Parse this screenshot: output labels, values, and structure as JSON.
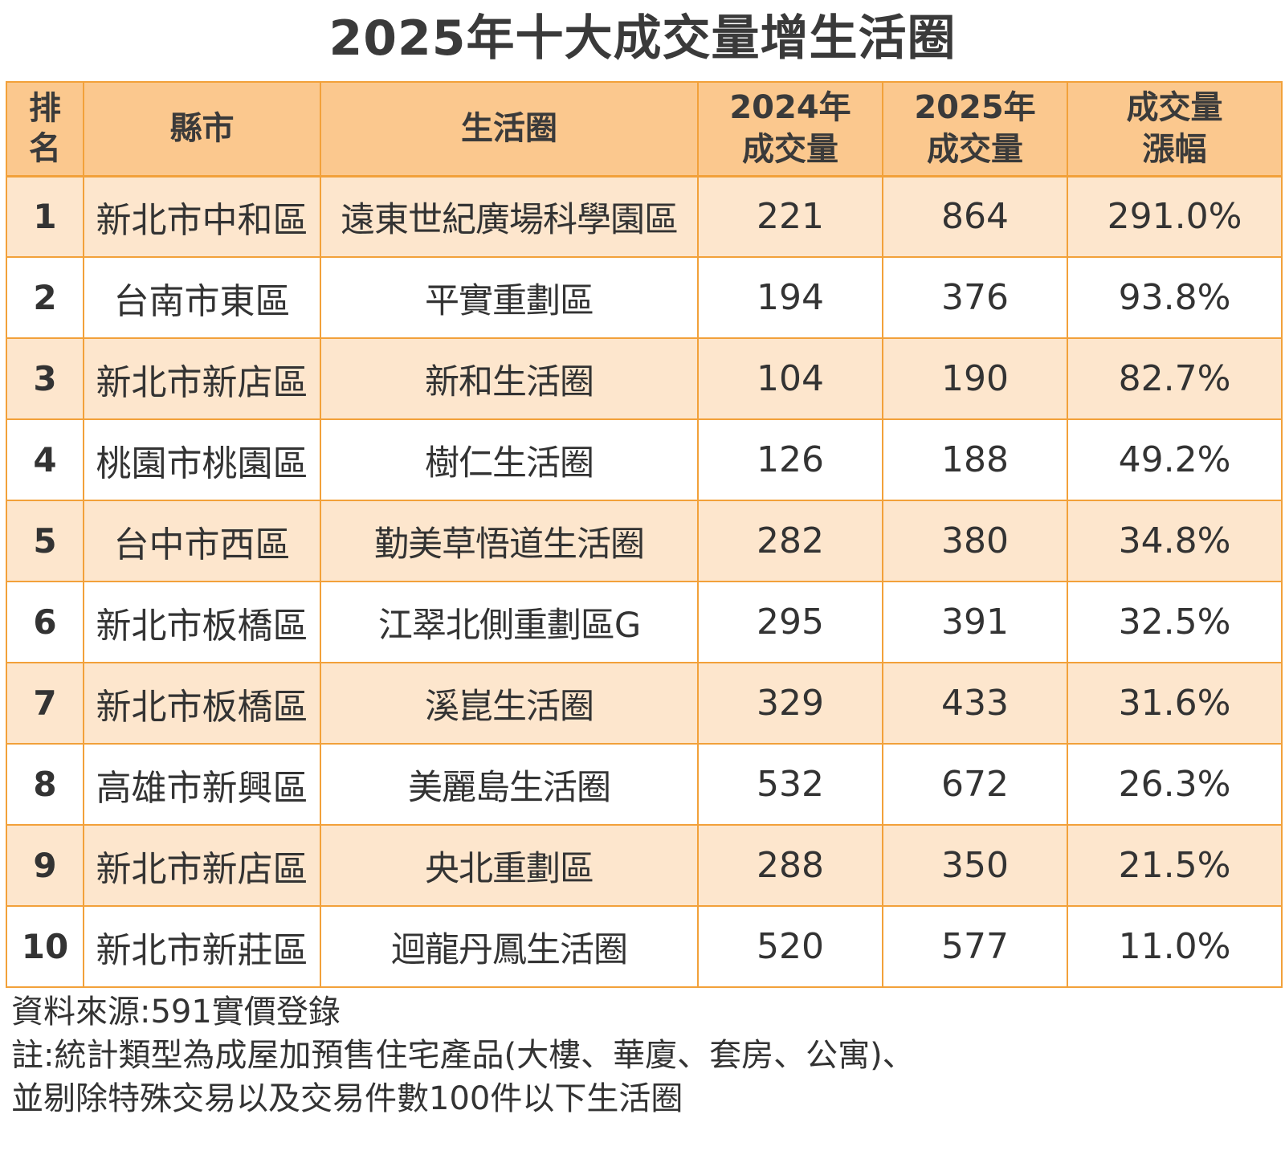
{
  "chart_data": {
    "type": "table",
    "title": "2025年十大成交量增生活圈",
    "columns": [
      "排名",
      "縣市",
      "生活圈",
      "2024年成交量",
      "2025年成交量",
      "成交量漲幅"
    ],
    "header_lines": [
      [
        "排",
        "名"
      ],
      [
        "縣市"
      ],
      [
        "生活圈"
      ],
      [
        "2024年",
        "成交量"
      ],
      [
        "2025年",
        "成交量"
      ],
      [
        "成交量",
        "漲幅"
      ]
    ],
    "rows": [
      {
        "rank": "1",
        "city": "新北市中和區",
        "circle": "遠東世紀廣場科學園區",
        "v2024": "221",
        "v2025": "864",
        "growth": "291.0%"
      },
      {
        "rank": "2",
        "city": "台南市東區",
        "circle": "平實重劃區",
        "v2024": "194",
        "v2025": "376",
        "growth": "93.8%"
      },
      {
        "rank": "3",
        "city": "新北市新店區",
        "circle": "新和生活圈",
        "v2024": "104",
        "v2025": "190",
        "growth": "82.7%"
      },
      {
        "rank": "4",
        "city": "桃園市桃園區",
        "circle": "樹仁生活圈",
        "v2024": "126",
        "v2025": "188",
        "growth": "49.2%"
      },
      {
        "rank": "5",
        "city": "台中市西區",
        "circle": "勤美草悟道生活圈",
        "v2024": "282",
        "v2025": "380",
        "growth": "34.8%"
      },
      {
        "rank": "6",
        "city": "新北市板橋區",
        "circle": "江翠北側重劃區G",
        "v2024": "295",
        "v2025": "391",
        "growth": "32.5%"
      },
      {
        "rank": "7",
        "city": "新北市板橋區",
        "circle": "溪崑生活圈",
        "v2024": "329",
        "v2025": "433",
        "growth": "31.6%"
      },
      {
        "rank": "8",
        "city": "高雄市新興區",
        "circle": "美麗島生活圈",
        "v2024": "532",
        "v2025": "672",
        "growth": "26.3%"
      },
      {
        "rank": "9",
        "city": "新北市新店區",
        "circle": "央北重劃區",
        "v2024": "288",
        "v2025": "350",
        "growth": "21.5%"
      },
      {
        "rank": "10",
        "city": "新北市新莊區",
        "circle": "迴龍丹鳳生活圈",
        "v2024": "520",
        "v2025": "577",
        "growth": "11.0%"
      }
    ],
    "colors": {
      "header_bg": "#fbc88e",
      "odd_row_bg": "#fde6cd",
      "even_row_bg": "#ffffff",
      "border": "#f2a13a",
      "text": "#333333"
    }
  },
  "notes": {
    "source": "資料來源:591實價登錄",
    "note_line1": "註:統計類型為成屋加預售住宅產品(大樓、華廈、套房、公寓)、",
    "note_line2": "並剔除特殊交易以及交易件數100件以下生活圈"
  }
}
